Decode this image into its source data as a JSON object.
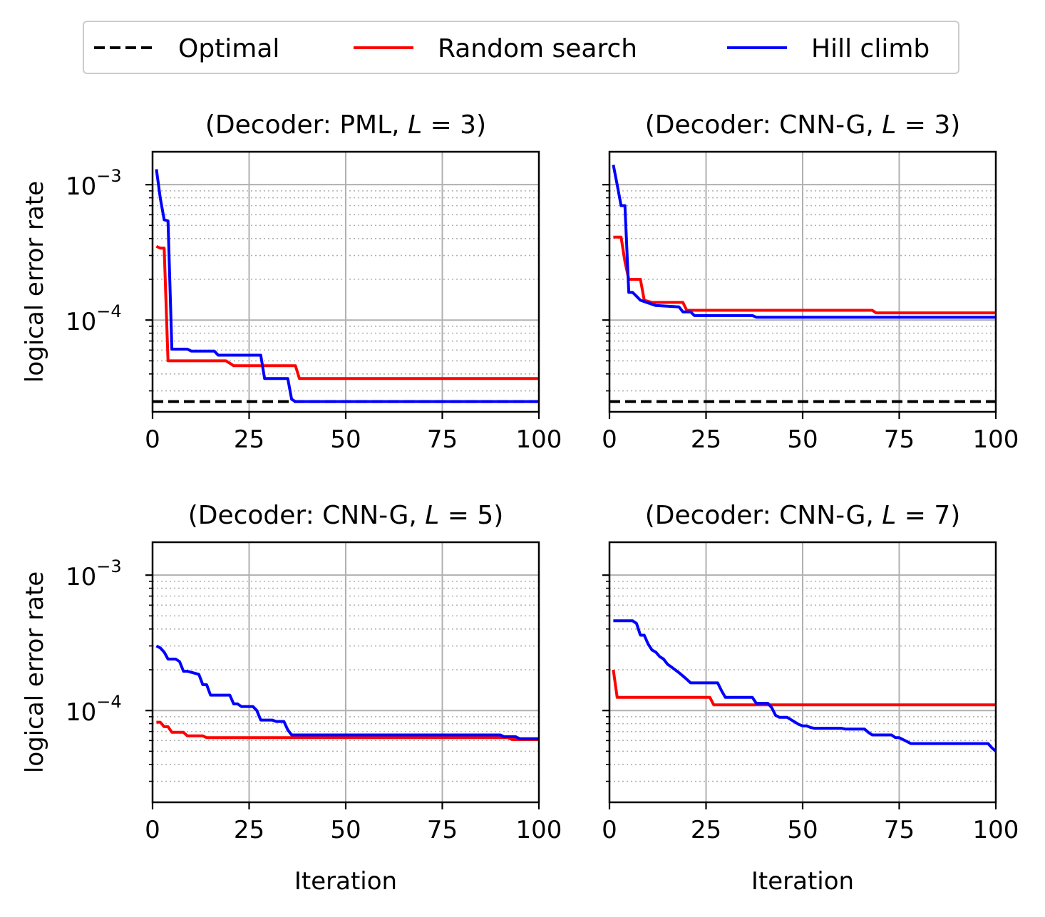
{
  "legend": {
    "entries": [
      {
        "name": "Optimal",
        "color": "#000000",
        "dash": true
      },
      {
        "name": "Random search",
        "color": "#ff0000",
        "dash": false
      },
      {
        "name": "Hill climb",
        "color": "#0000ff",
        "dash": false
      }
    ]
  },
  "colors": {
    "optimal": "#000000",
    "random": "#ff0000",
    "hill": "#0000ff",
    "grid": "#b0b0b0"
  },
  "chart_data": [
    {
      "type": "line",
      "title_prefix": "(Decoder: PML, ",
      "title_var": "L",
      "title_suffix": " = 3)",
      "xlabel": "",
      "ylabel": "logical error rate",
      "xlim": [
        0,
        100
      ],
      "ylim": [
        2.1e-05,
        0.00175
      ],
      "yscale": "log",
      "xticks": [
        "0",
        "25",
        "50",
        "75",
        "100"
      ],
      "yticks": [
        {
          "base": "10",
          "exp": "−3",
          "value": 0.001
        },
        {
          "base": "10",
          "exp": "−4",
          "value": 0.0001
        }
      ],
      "grid": true,
      "optimal": 2.5e-05,
      "series": [
        {
          "name": "Random search",
          "key": "random",
          "x": [
            1,
            2,
            3,
            4,
            19,
            20,
            21,
            36,
            37,
            38,
            100
          ],
          "y": [
            0.00035,
            0.00034,
            0.00034,
            5e-05,
            5e-05,
            4.8e-05,
            4.6e-05,
            4.6e-05,
            4.6e-05,
            3.7e-05,
            3.7e-05
          ]
        },
        {
          "name": "Hill climb",
          "key": "hill",
          "x": [
            1,
            2,
            3,
            4,
            5,
            9,
            10,
            16,
            17,
            28,
            29,
            35,
            36,
            37,
            100
          ],
          "y": [
            0.0013,
            0.0008,
            0.00055,
            0.00054,
            6.1e-05,
            6.1e-05,
            5.9e-05,
            5.9e-05,
            5.5e-05,
            5.5e-05,
            3.7e-05,
            3.7e-05,
            2.6e-05,
            2.5e-05,
            2.5e-05
          ]
        }
      ]
    },
    {
      "type": "line",
      "title_prefix": "(Decoder: CNN-G, ",
      "title_var": "L",
      "title_suffix": " = 3)",
      "xlabel": "",
      "ylabel": "",
      "xlim": [
        0,
        100
      ],
      "ylim": [
        2.1e-05,
        0.00175
      ],
      "yscale": "log",
      "xticks": [
        "0",
        "25",
        "50",
        "75",
        "100"
      ],
      "yticks": [],
      "grid": true,
      "optimal": 2.5e-05,
      "series": [
        {
          "name": "Random search",
          "key": "random",
          "x": [
            1,
            3,
            4,
            5,
            8,
            9,
            11,
            19,
            20,
            68,
            69,
            100
          ],
          "y": [
            0.00041,
            0.00041,
            0.00027,
            0.0002,
            0.0002,
            0.00014,
            0.000135,
            0.000135,
            0.000118,
            0.000118,
            0.000113,
            0.000113
          ]
        },
        {
          "name": "Hill climb",
          "key": "hill",
          "x": [
            1,
            2,
            3,
            4,
            5,
            6,
            7,
            8,
            12,
            18,
            19,
            21,
            22,
            37,
            38,
            100
          ],
          "y": [
            0.0014,
            0.001,
            0.0007,
            0.0007,
            0.00016,
            0.00016,
            0.00015,
            0.00014,
            0.000128,
            0.000125,
            0.000115,
            0.000115,
            0.000108,
            0.000108,
            0.000105,
            0.000105
          ]
        }
      ]
    },
    {
      "type": "line",
      "title_prefix": "(Decoder: CNN-G, ",
      "title_var": "L",
      "title_suffix": " = 5)",
      "xlabel": "Iteration",
      "ylabel": "logical error rate",
      "xlim": [
        0,
        100
      ],
      "ylim": [
        2.1e-05,
        0.00175
      ],
      "yscale": "log",
      "xticks": [
        "0",
        "25",
        "50",
        "75",
        "100"
      ],
      "yticks": [
        {
          "base": "10",
          "exp": "−3",
          "value": 0.001
        },
        {
          "base": "10",
          "exp": "−4",
          "value": 0.0001
        }
      ],
      "grid": true,
      "series": [
        {
          "name": "Random search",
          "key": "random",
          "x": [
            1,
            2,
            3,
            4,
            5,
            8,
            9,
            13,
            14,
            92,
            93,
            100
          ],
          "y": [
            8.2e-05,
            8.2e-05,
            7.6e-05,
            7.6e-05,
            6.9e-05,
            6.9e-05,
            6.5e-05,
            6.5e-05,
            6.3e-05,
            6.3e-05,
            6.1e-05,
            6.1e-05
          ]
        },
        {
          "name": "Hill climb",
          "key": "hill",
          "x": [
            1,
            2,
            3,
            4,
            5,
            6,
            7,
            8,
            9,
            12,
            13,
            14,
            15,
            20,
            21,
            22,
            23,
            26,
            27,
            28,
            29,
            31,
            32,
            34,
            35,
            36,
            37,
            90,
            91,
            94,
            95,
            100
          ],
          "y": [
            0.0003,
            0.00029,
            0.00027,
            0.00024,
            0.00024,
            0.00024,
            0.00023,
            0.000195,
            0.000195,
            0.000185,
            0.000155,
            0.000155,
            0.00013,
            0.00013,
            0.000112,
            0.000112,
            0.000107,
            0.000107,
            0.0001,
            8.5e-05,
            8.5e-05,
            8.5e-05,
            8.3e-05,
            8.3e-05,
            7.2e-05,
            6.6e-05,
            6.6e-05,
            6.6e-05,
            6.4e-05,
            6.4e-05,
            6.2e-05,
            6.2e-05
          ]
        }
      ]
    },
    {
      "type": "line",
      "title_prefix": "(Decoder: CNN-G, ",
      "title_var": "L",
      "title_suffix": " = 7)",
      "xlabel": "Iteration",
      "ylabel": "",
      "xlim": [
        0,
        100
      ],
      "ylim": [
        2.1e-05,
        0.00175
      ],
      "yscale": "log",
      "xticks": [
        "0",
        "25",
        "50",
        "75",
        "100"
      ],
      "yticks": [],
      "grid": true,
      "series": [
        {
          "name": "Random search",
          "key": "random",
          "x": [
            1,
            2,
            26,
            27,
            100
          ],
          "y": [
            0.0002,
            0.000125,
            0.000125,
            0.00011,
            0.00011
          ]
        },
        {
          "name": "Hill climb",
          "key": "hill",
          "x": [
            1,
            6,
            7,
            8,
            9,
            10,
            11,
            12,
            13,
            14,
            15,
            16,
            17,
            18,
            19,
            20,
            21,
            22,
            28,
            29,
            30,
            31,
            32,
            37,
            38,
            41,
            42,
            43,
            44,
            45,
            46,
            49,
            50,
            51,
            52,
            53,
            60,
            61,
            66,
            67,
            68,
            69,
            73,
            74,
            75,
            76,
            77,
            78,
            79,
            80,
            81,
            98,
            99,
            100
          ],
          "y": [
            0.00046,
            0.00046,
            0.00044,
            0.00036,
            0.00036,
            0.00031,
            0.00028,
            0.00027,
            0.00025,
            0.00024,
            0.00022,
            0.00021,
            0.0002,
            0.00019,
            0.00018,
            0.00017,
            0.00016,
            0.00016,
            0.00016,
            0.00014,
            0.000125,
            0.000125,
            0.000125,
            0.000125,
            0.000113,
            0.000113,
            0.000105,
            9.2e-05,
            8.9e-05,
            8.9e-05,
            8.9e-05,
            7.9e-05,
            7.7e-05,
            7.7e-05,
            7.5e-05,
            7.4e-05,
            7.4e-05,
            7.3e-05,
            7.3e-05,
            6.9e-05,
            6.6e-05,
            6.6e-05,
            6.6e-05,
            6.3e-05,
            6.3e-05,
            6.1e-05,
            5.9e-05,
            5.7e-05,
            5.7e-05,
            5.7e-05,
            5.7e-05,
            5.7e-05,
            5.3e-05,
            5e-05
          ]
        }
      ]
    }
  ]
}
